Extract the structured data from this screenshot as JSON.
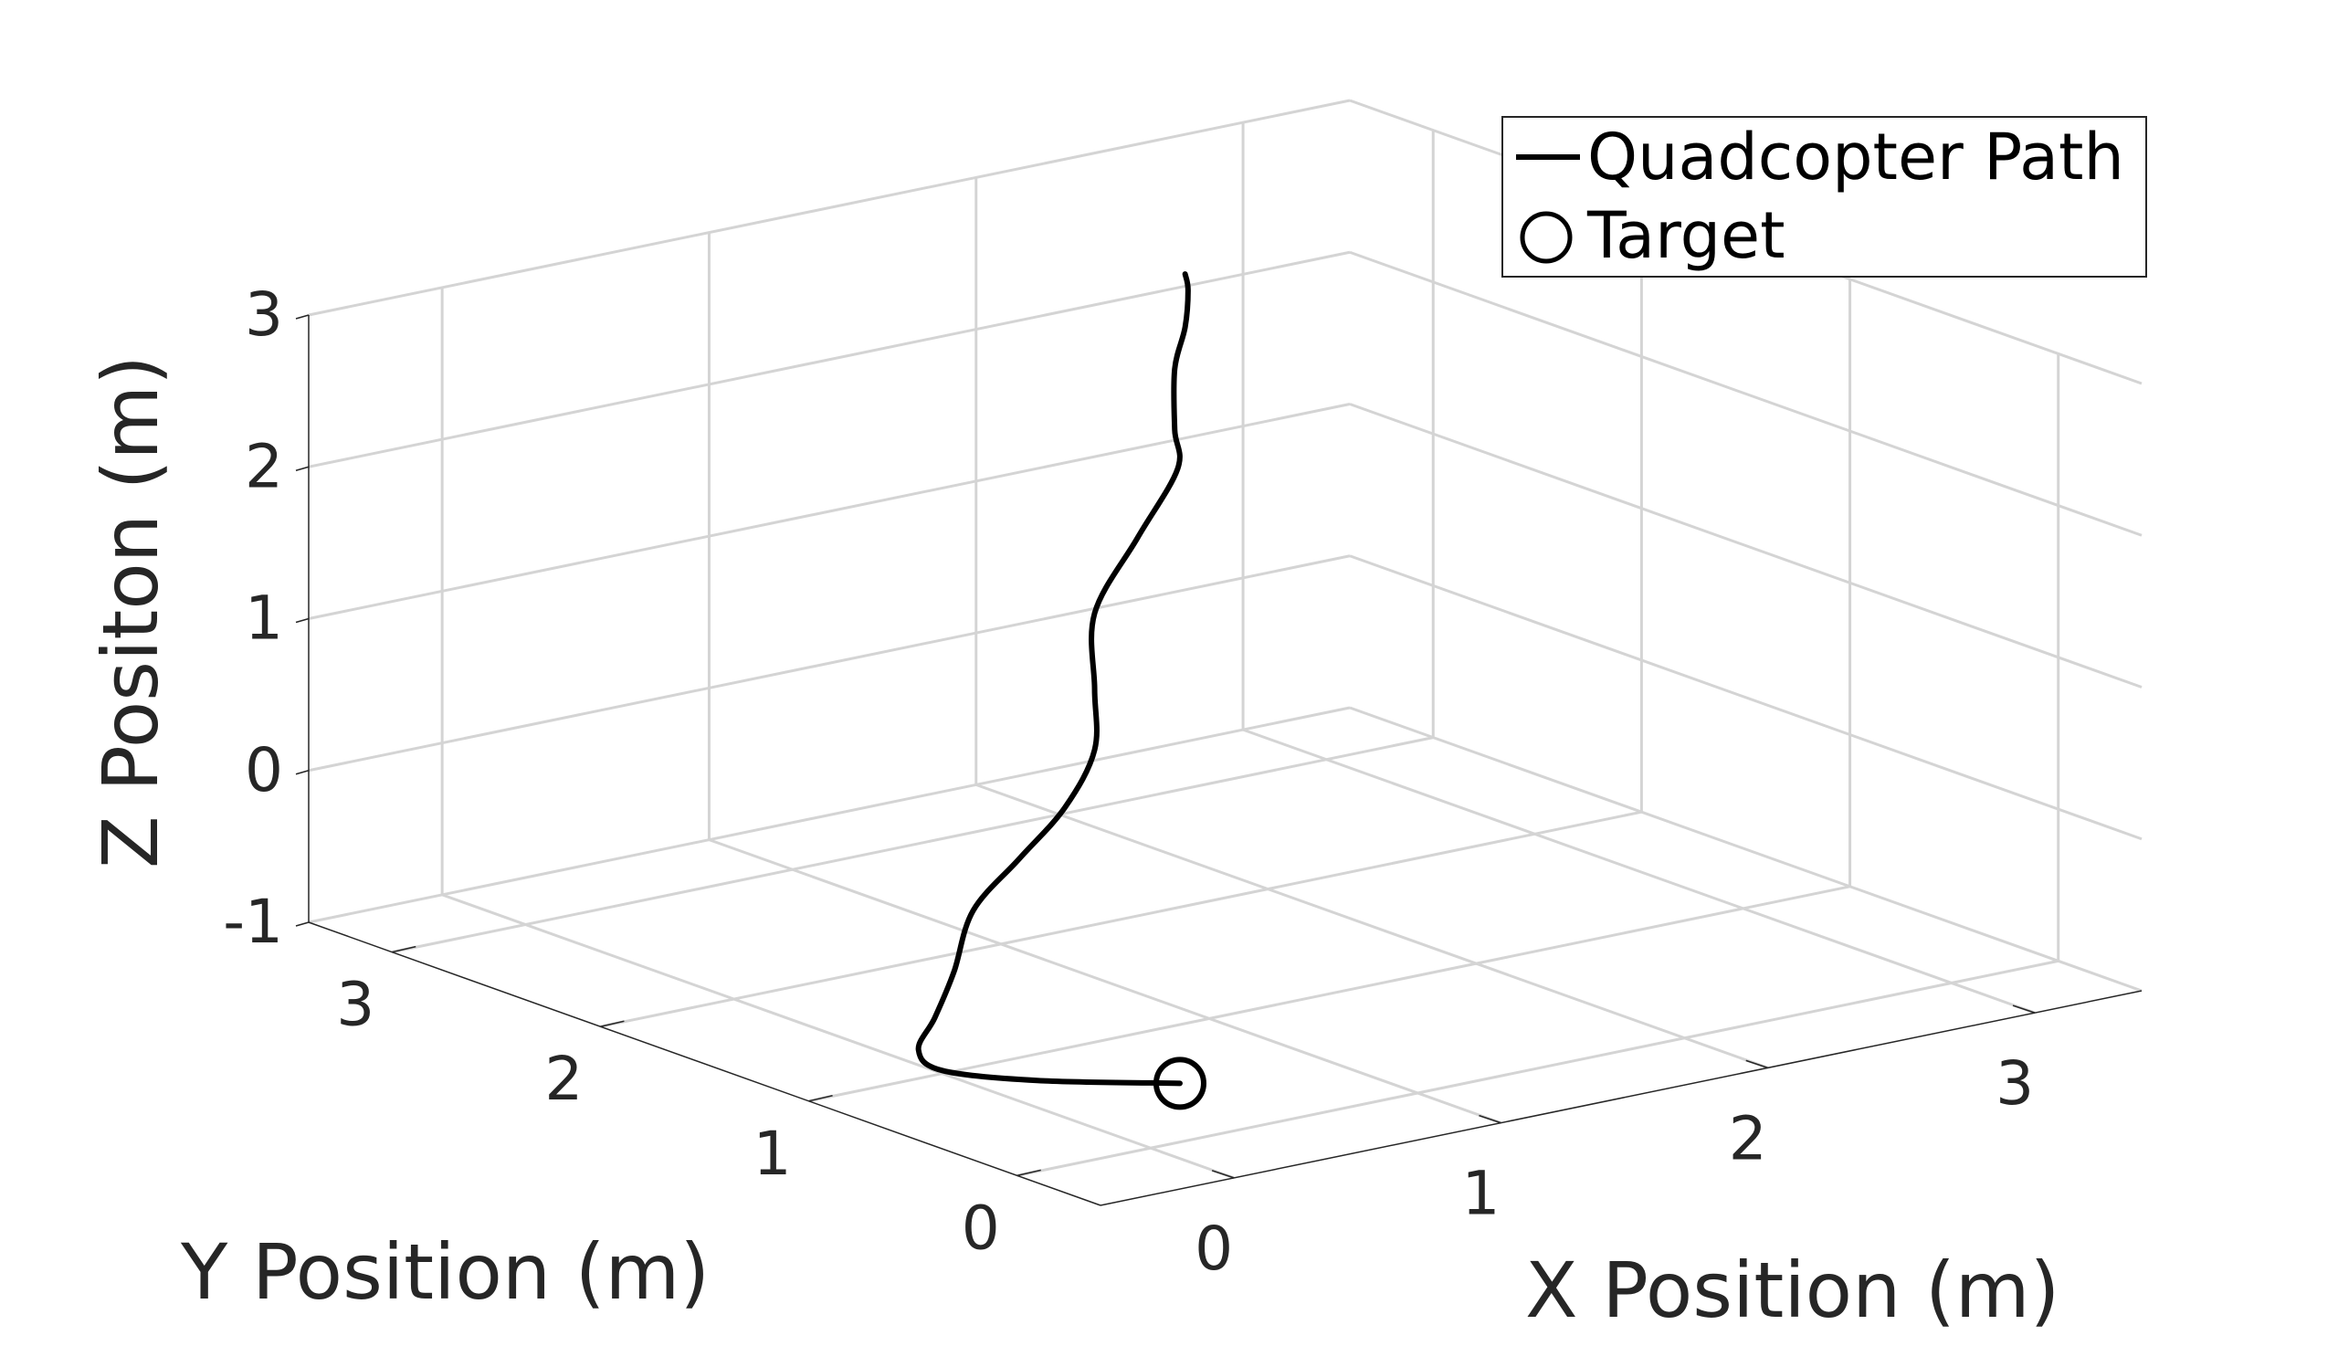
{
  "chart_data": {
    "type": "line3d",
    "title": "",
    "xlabel": "X Position (m)",
    "ylabel": "Y Position (m)",
    "zlabel": "Z Positon (m)",
    "xlim": [
      -0.5,
      3.4
    ],
    "ylim": [
      -0.4,
      3.4
    ],
    "zlim": [
      -1,
      3
    ],
    "x_ticks": [
      "0",
      "1",
      "2",
      "3"
    ],
    "y_ticks": [
      "0",
      "1",
      "2",
      "3"
    ],
    "z_ticks": [
      "-1",
      "0",
      "1",
      "2",
      "3"
    ],
    "grid": true,
    "legend_position": "top-right",
    "legend": [
      {
        "label": "Quadcopter Path",
        "marker": "line"
      },
      {
        "label": "Target",
        "marker": "circle"
      }
    ],
    "series": [
      {
        "name": "Quadcopter Path",
        "color": "#000000",
        "points": [
          {
            "x": 0.5,
            "y": 0.5,
            "z": -1.0
          },
          {
            "x": 0.2,
            "y": 0.8,
            "z": -1.02
          },
          {
            "x": 0.0,
            "y": 1.0,
            "z": -0.98
          },
          {
            "x": -0.05,
            "y": 1.05,
            "z": -0.85
          },
          {
            "x": 0.05,
            "y": 1.1,
            "z": -0.7
          },
          {
            "x": 0.2,
            "y": 1.2,
            "z": -0.5
          },
          {
            "x": 0.35,
            "y": 1.3,
            "z": -0.2
          },
          {
            "x": 0.6,
            "y": 1.4,
            "z": 0.0
          },
          {
            "x": 0.85,
            "y": 1.5,
            "z": 0.2
          },
          {
            "x": 1.0,
            "y": 1.55,
            "z": 0.5
          },
          {
            "x": 1.0,
            "y": 1.55,
            "z": 0.9
          },
          {
            "x": 1.0,
            "y": 1.55,
            "z": 1.4
          },
          {
            "x": 1.2,
            "y": 1.6,
            "z": 1.8
          },
          {
            "x": 1.35,
            "y": 1.6,
            "z": 2.2
          },
          {
            "x": 1.3,
            "y": 1.55,
            "z": 2.5
          },
          {
            "x": 1.3,
            "y": 1.55,
            "z": 2.9
          },
          {
            "x": 1.3,
            "y": 1.5,
            "z": 3.2
          },
          {
            "x": 1.35,
            "y": 1.55,
            "z": 3.4
          },
          {
            "x": 1.3,
            "y": 1.5,
            "z": 3.55
          }
        ]
      }
    ],
    "target": {
      "name": "Target",
      "x": 0.5,
      "y": 0.5,
      "z": -1.0
    }
  }
}
